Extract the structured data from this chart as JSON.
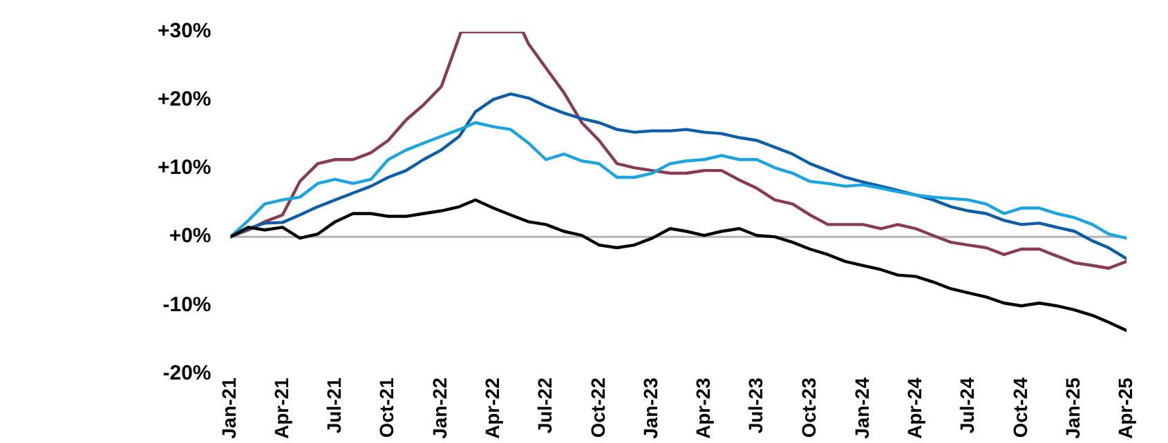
{
  "chart_data": {
    "type": "line",
    "x": [
      "2021-01",
      "2021-02",
      "2021-03",
      "2021-04",
      "2021-05",
      "2021-06",
      "2021-07",
      "2021-08",
      "2021-09",
      "2021-10",
      "2021-11",
      "2021-12",
      "2022-01",
      "2022-02",
      "2022-03",
      "2022-04",
      "2022-05",
      "2022-06",
      "2022-07",
      "2022-08",
      "2022-09",
      "2022-10",
      "2022-11",
      "2022-12",
      "2023-01",
      "2023-02",
      "2023-03",
      "2023-04",
      "2023-05",
      "2023-06",
      "2023-07",
      "2023-08",
      "2023-09",
      "2023-10",
      "2023-11",
      "2023-12",
      "2024-01",
      "2024-02",
      "2024-03",
      "2024-04",
      "2024-05",
      "2024-06",
      "2024-07",
      "2024-08",
      "2024-09",
      "2024-10",
      "2024-11",
      "2024-12",
      "2025-01",
      "2025-02",
      "2025-03",
      "2025-04"
    ],
    "series": [
      {
        "color": "#000000",
        "values": [
          0,
          1.4,
          1.0,
          1.4,
          -0.2,
          0.4,
          2.2,
          3.4,
          3.4,
          3.0,
          3.0,
          3.4,
          3.8,
          4.4,
          5.4,
          4.2,
          3.2,
          2.2,
          1.8,
          0.8,
          0.2,
          -1.2,
          -1.6,
          -1.2,
          -0.2,
          1.2,
          0.8,
          0.2,
          0.8,
          1.2,
          0.2,
          0,
          -0.8,
          -1.8,
          -2.6,
          -3.6,
          -4.2,
          -4.8,
          -5.6,
          -5.8,
          -6.6,
          -7.6,
          -8.2,
          -8.8,
          -9.7,
          -10.1,
          -9.7,
          -10.1,
          -10.7,
          -11.5,
          -12.5,
          -13.7
        ]
      },
      {
        "color": "#19a5e1",
        "values": [
          0,
          2.4,
          4.8,
          5.4,
          5.8,
          7.8,
          8.4,
          7.8,
          8.4,
          11.3,
          12.7,
          13.7,
          14.7,
          15.7,
          16.7,
          16.1,
          15.7,
          13.7,
          11.3,
          12.1,
          11.1,
          10.7,
          8.7,
          8.7,
          9.3,
          10.7,
          11.1,
          11.3,
          11.9,
          11.3,
          11.3,
          10.1,
          9.3,
          8.1,
          7.8,
          7.4,
          7.6,
          7.1,
          6.6,
          6.1,
          5.8,
          5.6,
          5.4,
          4.8,
          3.4,
          4.2,
          4.2,
          3.4,
          2.8,
          1.8,
          0.4,
          -0.2
        ]
      },
      {
        "color": "#0c5ea8",
        "values": [
          0,
          1.2,
          2.0,
          2.1,
          3.2,
          4.4,
          5.4,
          6.4,
          7.4,
          8.7,
          9.7,
          11.3,
          12.7,
          14.7,
          18.3,
          20.1,
          20.9,
          20.3,
          19.1,
          18.1,
          17.3,
          16.7,
          15.7,
          15.3,
          15.5,
          15.5,
          15.7,
          15.3,
          15.1,
          14.5,
          14.1,
          13.1,
          12.1,
          10.7,
          9.7,
          8.7,
          8.0,
          7.4,
          6.8,
          6.1,
          5.4,
          4.4,
          3.8,
          3.4,
          2.4,
          1.8,
          2.0,
          1.4,
          0.8,
          -0.6,
          -1.6,
          -3.2
        ]
      },
      {
        "color": "#8b3a56",
        "x": [
          "2021-01",
          "2021-02",
          "2021-03",
          "2021-04",
          "2021-05",
          "2021-06",
          "2021-07",
          "2021-08",
          "2021-09",
          "2021-10",
          "2021-11",
          "2021-12",
          "2022-01",
          "2022-02",
          "2022-02-04",
          "2022-05-22",
          "2022-06",
          "2022-07",
          "2022-08",
          "2022-09",
          "2022-10",
          "2022-11",
          "2022-12",
          "2023-01",
          "2023-02",
          "2023-03",
          "2023-04",
          "2023-05",
          "2023-06",
          "2023-07",
          "2023-08",
          "2023-09",
          "2023-10",
          "2023-11",
          "2023-12",
          "2024-01",
          "2024-02",
          "2024-03",
          "2024-04",
          "2024-05",
          "2024-06",
          "2024-07",
          "2024-08",
          "2024-09",
          "2024-10",
          "2024-11",
          "2024-12",
          "2025-01",
          "2025-02",
          "2025-03",
          "2025-04"
        ],
        "values": [
          0,
          1.0,
          2.2,
          3.2,
          8.1,
          10.7,
          11.3,
          11.3,
          12.3,
          14.1,
          17.1,
          19.3,
          22,
          29.3,
          30,
          30,
          28.2,
          24.7,
          21.1,
          16.7,
          14.1,
          10.7,
          10.1,
          9.7,
          9.3,
          9.3,
          9.7,
          9.7,
          8.3,
          7.1,
          5.4,
          4.8,
          3.2,
          1.8,
          1.8,
          1.8,
          1.2,
          1.8,
          1.2,
          0.2,
          -0.8,
          -1.2,
          -1.6,
          -2.6,
          -1.8,
          -1.8,
          -2.8,
          -3.8,
          -4.2,
          -4.6,
          -3.6
        ]
      }
    ],
    "xlim": [
      "2021-01",
      "2025-04"
    ],
    "xticks": [
      {
        "value": "2021-01",
        "label": "Jan-21"
      },
      {
        "value": "2021-04",
        "label": "Apr-21"
      },
      {
        "value": "2021-07",
        "label": "Jul-21"
      },
      {
        "value": "2021-10",
        "label": "Oct-21"
      },
      {
        "value": "2022-01",
        "label": "Jan-22"
      },
      {
        "value": "2022-04",
        "label": "Apr-22"
      },
      {
        "value": "2022-07",
        "label": "Jul-22"
      },
      {
        "value": "2022-10",
        "label": "Oct-22"
      },
      {
        "value": "2023-01",
        "label": "Jan-23"
      },
      {
        "value": "2023-04",
        "label": "Apr-23"
      },
      {
        "value": "2023-07",
        "label": "Jul-23"
      },
      {
        "value": "2023-10",
        "label": "Oct-23"
      },
      {
        "value": "2024-01",
        "label": "Jan-24"
      },
      {
        "value": "2024-04",
        "label": "Apr-24"
      },
      {
        "value": "2024-07",
        "label": "Jul-24"
      },
      {
        "value": "2024-10",
        "label": "Oct-24"
      },
      {
        "value": "2025-01",
        "label": "Jan-25"
      },
      {
        "value": "2025-04",
        "label": "Apr-25"
      }
    ],
    "ylim": [
      -20,
      30
    ],
    "yticks": [
      {
        "value": -20,
        "label": "-20%"
      },
      {
        "value": -10,
        "label": "-10%"
      },
      {
        "value": 0,
        "label": "+0%"
      },
      {
        "value": 10,
        "label": "+10%"
      },
      {
        "value": 20,
        "label": "+20%"
      },
      {
        "value": 30,
        "label": "+30%"
      }
    ],
    "ref_lines": [
      {
        "axis": "y",
        "value": 0,
        "color": "#b4b4b4"
      }
    ],
    "grid": false,
    "legend": false,
    "marker": "none"
  }
}
